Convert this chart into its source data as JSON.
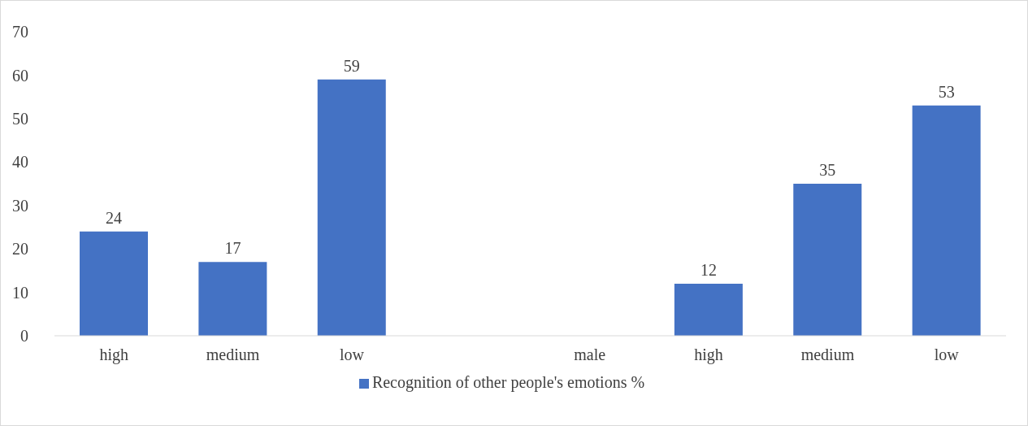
{
  "chart_data": {
    "type": "bar",
    "categories": [
      "high",
      "medium",
      "low",
      null,
      "male",
      "high",
      "medium",
      "low"
    ],
    "series": [
      {
        "name": "Recognition of other people's emotions %",
        "color": "#4472c4",
        "values": [
          24,
          17,
          59,
          null,
          null,
          12,
          35,
          53
        ]
      }
    ],
    "ylim": [
      0,
      70
    ],
    "yticks": [
      0,
      10,
      20,
      30,
      40,
      50,
      60,
      70
    ],
    "grid": false,
    "legend": "bottom",
    "data_labels": true
  }
}
